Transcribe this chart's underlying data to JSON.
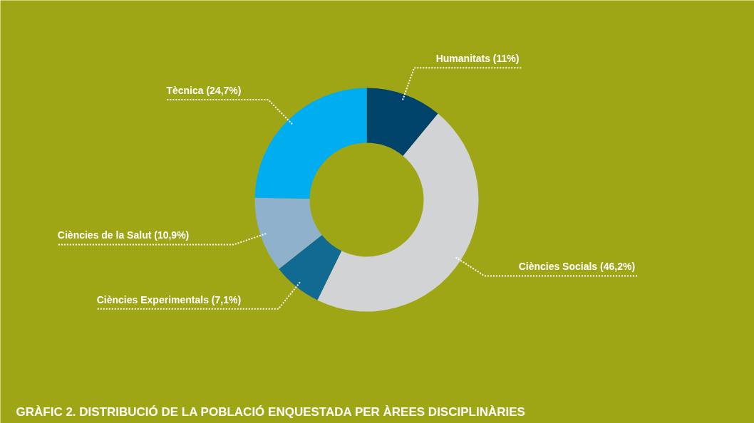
{
  "chart_data": {
    "type": "donut",
    "title": "GRÀFIC 2. DISTRIBUCIÓ DE LA POBLACIÓ ENQUESTADA PER ÀREES DISCIPLINÀRIES",
    "categories": [
      "Humanitats",
      "Ciències Socials",
      "Ciències Experimentals",
      "Ciències de la Salut",
      "Tècnica"
    ],
    "values": [
      11,
      46.2,
      7.1,
      10.9,
      24.7
    ],
    "colors": [
      "#00436a",
      "#d1d3d4",
      "#116a91",
      "#8fb1cc",
      "#00aeef"
    ],
    "value_labels": [
      "(11%)",
      "(46,2%)",
      "(7,1%)",
      "(10,9%)",
      "(24,7%)"
    ]
  }
}
